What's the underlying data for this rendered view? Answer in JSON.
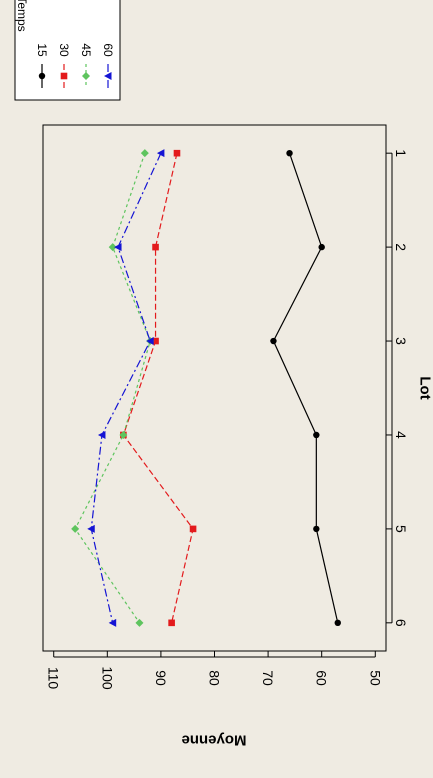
{
  "chart_data": {
    "type": "line",
    "orientation": "rotated-90-clockwise",
    "xlabel": "Lot",
    "ylabel": "Moyenne",
    "x_ticks": [
      "1",
      "2",
      "3",
      "4",
      "5",
      "6"
    ],
    "y_ticks": [
      "50",
      "60",
      "70",
      "80",
      "90",
      "100",
      "110"
    ],
    "xlim": [
      0.7,
      6.3
    ],
    "ylim": [
      48,
      112
    ],
    "grid": false,
    "legend": {
      "title": "Temps",
      "placement": "top-right"
    },
    "x": [
      1,
      2,
      3,
      4,
      5,
      6
    ],
    "series": [
      {
        "name": "15",
        "color": "#000000",
        "marker": "circle",
        "dash": "none",
        "values": [
          66,
          60,
          69,
          61,
          61,
          57
        ]
      },
      {
        "name": "30",
        "color": "#e31a1c",
        "marker": "square",
        "dash": "dashed",
        "values": [
          87,
          91,
          91,
          97,
          84,
          88
        ]
      },
      {
        "name": "45",
        "color": "#5ec45e",
        "marker": "diamond",
        "dash": "dotted",
        "values": [
          93,
          99,
          92,
          97,
          106,
          94
        ]
      },
      {
        "name": "60",
        "color": "#1414d4",
        "marker": "triangle",
        "dash": "dashdot",
        "values": [
          90,
          98,
          92,
          101,
          103,
          99
        ]
      }
    ]
  }
}
